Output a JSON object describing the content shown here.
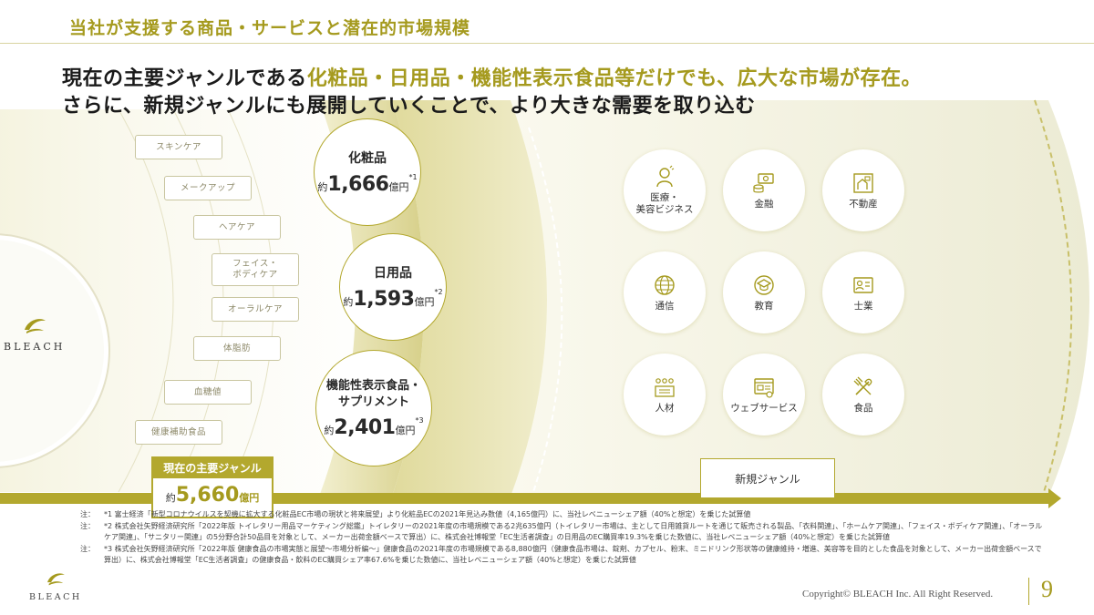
{
  "header": {
    "title": "当社が支援する商品・サービスと潜在的市場規模"
  },
  "headline": {
    "line1_pre": "現在の主要ジャンルである",
    "line1_accent": "化粧品・日用品・機能性表示食品等だけでも、広大な市場が存在。",
    "line2": "さらに、新規ジャンルにも展開していくことで、より大きな需要を取り込む"
  },
  "subgenres": [
    "スキンケア",
    "メークアップ",
    "ヘアケア",
    "フェイス・\nボディケア",
    "オーラルケア",
    "体脂肪",
    "血糖値",
    "健康補助食品"
  ],
  "brand": {
    "name": "BLEACH"
  },
  "markets": [
    {
      "name": "化粧品",
      "prefix": "約",
      "value": "1,666",
      "unit": "億円",
      "note": "*1"
    },
    {
      "name": "日用品",
      "prefix": "約",
      "value": "1,593",
      "unit": "億円",
      "note": "*2"
    },
    {
      "name": "機能性表示食品・\nサプリメント",
      "prefix": "約",
      "value": "2,401",
      "unit": "億円",
      "note": "*3"
    }
  ],
  "new_genres": [
    {
      "label": "医療・\n美容ビジネス",
      "icon": "medical-beauty-icon"
    },
    {
      "label": "金融",
      "icon": "finance-icon"
    },
    {
      "label": "不動産",
      "icon": "real-estate-icon"
    },
    {
      "label": "通信",
      "icon": "telecom-icon"
    },
    {
      "label": "教育",
      "icon": "education-icon"
    },
    {
      "label": "士業",
      "icon": "professional-icon"
    },
    {
      "label": "人材",
      "icon": "hr-icon"
    },
    {
      "label": "ウェブサービス",
      "icon": "web-service-icon"
    },
    {
      "label": "食品",
      "icon": "food-icon"
    }
  ],
  "current_main": {
    "label": "現在の主要ジャンル",
    "prefix": "約",
    "value": "5,660",
    "unit": "億円"
  },
  "new_genre_label": "新規ジャンル",
  "notes": [
    {
      "mark": "注：",
      "text": "*1 富士経済「新型コロナウイルスを契機に拡大する化粧品EC市場の現状と将来展望」より化粧品ECの2021年見込み数値（4,165億円）に、当社レベニューシェア額（40%と想定）を乗じた試算値"
    },
    {
      "mark": "注：",
      "text": "*2 株式会社矢野経済研究所「2022年版 トイレタリー用品マーケティング総鑑」トイレタリーの2021年度の市場規模である2兆635億円（トイレタリー市場は、主として日用雑貨ルートを通じて販売される製品、「衣料関連」、「ホームケア関連」、「フェイス・ボディケア関連」、「オーラルケア関連」、「サニタリー関連」の5分野合計50品目を対象として、メーカー出荷金額ベースで算出）に、株式会社博報堂「EC生活者調査」の日用品のEC購買率19.3%を乗じた数値に、当社レベニューシェア額（40%と想定）を乗じた試算値"
    },
    {
      "mark": "注：",
      "text": "*3 株式会社矢野経済研究所「2022年版 健康食品の市場実態と展望〜市場分析編〜」健康食品の2021年度の市場規模である8,880億円（健康食品市場は、錠剤、カプセル、粉末、ミニドリンク形状等の健康維持・増進、美容等を目的とした食品を対象として、メーカー出荷金額ベースで算出）に、株式会社博報堂「EC生活者調査」の健康食品・飲料のEC購買シェア率67.6%を乗じた数値に、当社レベニューシェア額（40%と想定）を乗じた試算値"
    }
  ],
  "footer": {
    "copyright": "Copyright© BLEACH Inc. All Right Reserved.",
    "page": "9"
  },
  "colors": {
    "accent": "#b3a82e",
    "accent_text": "#a59a1e",
    "band_light": "#e8e4b0"
  }
}
